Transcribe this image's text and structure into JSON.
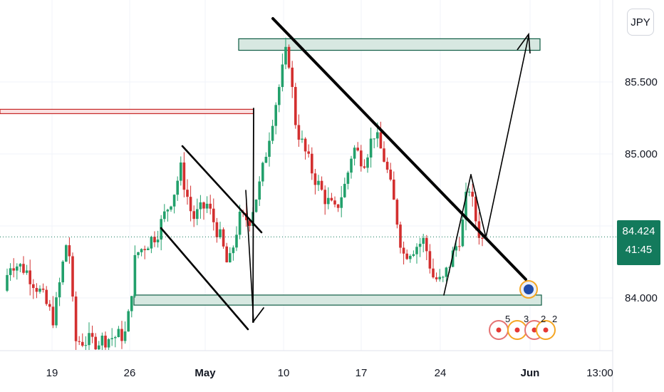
{
  "currency_label": "JPY",
  "current_price": "84.424",
  "countdown": "41:45",
  "colors": {
    "up": "#22a06b",
    "down": "#d32f2f",
    "zone_fill": "#d7e8e1",
    "zone_border": "#0f5c44",
    "resistance_fill": "#fbe1e1",
    "resistance_border": "#c62828",
    "last_price": "#137a5c",
    "trendline": "#000000"
  },
  "chart_data": {
    "type": "candlestick",
    "title": "",
    "ylim": [
      83.62,
      86.18
    ],
    "y_ticks": [
      "85.500",
      "85.000",
      "84.500",
      "84.000"
    ],
    "x_ticks": [
      {
        "label": "19",
        "bold": false
      },
      {
        "label": "26",
        "bold": false
      },
      {
        "label": "May",
        "bold": true
      },
      {
        "label": "10",
        "bold": false
      },
      {
        "label": "17",
        "bold": false
      },
      {
        "label": "24",
        "bold": false
      },
      {
        "label": "Jun",
        "bold": true
      },
      {
        "label": "13:00",
        "bold": false
      }
    ],
    "event_markers": [
      "5",
      "3",
      "2",
      "2"
    ],
    "candles_summary": [
      {
        "date": "Apr 19",
        "price": 84.05
      },
      {
        "date": "Apr 21",
        "price": 84.55
      },
      {
        "date": "Apr 26",
        "price": 83.7
      },
      {
        "date": "Apr 27",
        "price": 84.45
      },
      {
        "date": "Apr 30",
        "price": 84.95
      },
      {
        "date": "May 3",
        "price": 84.1
      },
      {
        "date": "May 6",
        "price": 84.55
      },
      {
        "date": "May 10",
        "price": 85.75
      },
      {
        "date": "May 14",
        "price": 84.85
      },
      {
        "date": "May 17",
        "price": 85.15
      },
      {
        "date": "May 19",
        "price": 84.7
      },
      {
        "date": "May 21",
        "price": 84.3
      },
      {
        "date": "May 24",
        "price": 84.05
      },
      {
        "date": "May 27",
        "price": 84.8
      },
      {
        "date": "May 28",
        "price": 84.42
      }
    ],
    "zones": [
      {
        "name": "top-supply",
        "low": 85.72,
        "high": 85.8
      },
      {
        "name": "resistance-line",
        "low": 85.28,
        "high": 85.31
      },
      {
        "name": "bottom-demand",
        "low": 83.95,
        "high": 84.02
      }
    ]
  }
}
